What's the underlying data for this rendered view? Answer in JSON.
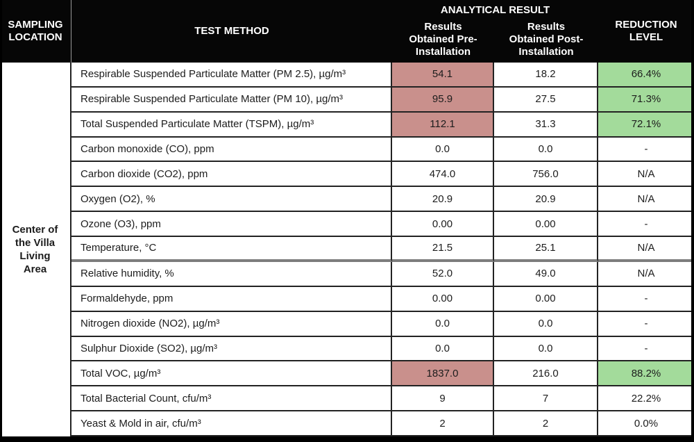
{
  "colors": {
    "pre_highlight": "#c9908c",
    "reduction_highlight": "#a3db9b",
    "header_bg": "#060606",
    "header_text": "#ffffff"
  },
  "header": {
    "sampling_location": "SAMPLING LOCATION",
    "test_method": "TEST METHOD",
    "analytical_result": "ANALYTICAL RESULT",
    "results_pre": "Results Obtained Pre-Installation",
    "results_post": "Results Obtained Post-Installation",
    "reduction_level": "REDUCTION LEVEL"
  },
  "sampling_location_value": "Center of the Villa Living Area",
  "rows": [
    {
      "method": "Respirable Suspended Particulate Matter (PM 2.5), µg/m³",
      "pre": "54.1",
      "post": "18.2",
      "reduction": "66.4%",
      "highlighted": true
    },
    {
      "method": "Respirable Suspended Particulate Matter (PM 10), µg/m³",
      "pre": "95.9",
      "post": "27.5",
      "reduction": "71.3%",
      "highlighted": true
    },
    {
      "method": "Total Suspended Particulate Matter (TSPM), µg/m³",
      "pre": "112.1",
      "post": "31.3",
      "reduction": "72.1%",
      "highlighted": true
    },
    {
      "method": "Carbon monoxide (CO), ppm",
      "pre": "0.0",
      "post": "0.0",
      "reduction": "-",
      "highlighted": false
    },
    {
      "method": "Carbon dioxide (CO2), ppm",
      "pre": "474.0",
      "post": "756.0",
      "reduction": "N/A",
      "highlighted": false
    },
    {
      "method": "Oxygen (O2), %",
      "pre": "20.9",
      "post": "20.9",
      "reduction": "N/A",
      "highlighted": false
    },
    {
      "method": "Ozone (O3), ppm",
      "pre": "0.00",
      "post": "0.00",
      "reduction": "-",
      "highlighted": false
    },
    {
      "method": "Temperature, °C",
      "pre": "21.5",
      "post": "25.1",
      "reduction": "N/A",
      "highlighted": false,
      "thick_border_below": true
    },
    {
      "method": "Relative humidity, %",
      "pre": "52.0",
      "post": "49.0",
      "reduction": "N/A",
      "highlighted": false
    },
    {
      "method": "Formaldehyde, ppm",
      "pre": "0.00",
      "post": "0.00",
      "reduction": "-",
      "highlighted": false
    },
    {
      "method": "Nitrogen dioxide (NO2), µg/m³",
      "pre": "0.0",
      "post": "0.0",
      "reduction": "-",
      "highlighted": false
    },
    {
      "method": "Sulphur Dioxide (SO2), µg/m³",
      "pre": "0.0",
      "post": "0.0",
      "reduction": "-",
      "highlighted": false
    },
    {
      "method": "Total VOC, µg/m³",
      "pre": "1837.0",
      "post": "216.0",
      "reduction": "88.2%",
      "highlighted": true
    },
    {
      "method": "Total Bacterial Count, cfu/m³",
      "pre": "9",
      "post": "7",
      "reduction": "22.2%",
      "highlighted": false
    },
    {
      "method": "Yeast & Mold in air, cfu/m³",
      "pre": "2",
      "post": "2",
      "reduction": "0.0%",
      "highlighted": false
    }
  ]
}
